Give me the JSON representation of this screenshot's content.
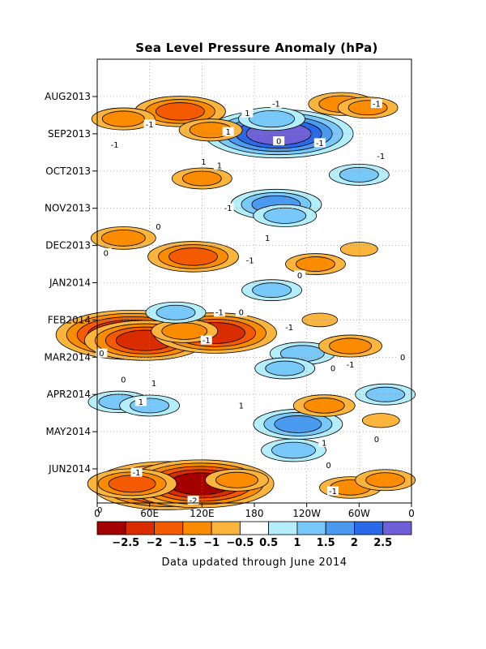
{
  "chart_data": {
    "type": "heatmap",
    "title": "Sea Level Pressure Anomaly (hPa)",
    "footnote": "Data updated through June 2014",
    "x_ticks": [
      "0",
      "60E",
      "120E",
      "180",
      "120W",
      "60W",
      "0"
    ],
    "y_ticks": [
      "AUG2013",
      "SEP2013",
      "OCT2013",
      "NOV2013",
      "DEC2013",
      "JAN2014",
      "FEB2014",
      "MAR2014",
      "APR2014",
      "MAY2014",
      "JUN2014"
    ],
    "colorbar": {
      "labels": [
        "-2.5",
        "-2",
        "-1.5",
        "-1",
        "-0.5",
        "0.5",
        "1",
        "1.5",
        "2",
        "2.5"
      ],
      "colors": [
        "#a50000",
        "#d92c00",
        "#f45a00",
        "#fb8c00",
        "#fbb43c",
        "#ffffff",
        "#b4eefa",
        "#78c8fa",
        "#4a9af0",
        "#2a6ae8",
        "#7060d8"
      ]
    },
    "contour_labels": [
      "-1",
      "-1",
      "-1",
      "-1",
      "-1",
      "-1",
      "-1",
      "-1",
      "-1",
      "-1",
      "-1",
      "-1",
      "-2",
      "-1",
      "-1",
      "1",
      "1",
      "1",
      "1",
      "1",
      "1",
      "1",
      "1",
      "1",
      "0",
      "0",
      "0",
      "0",
      "0",
      "0",
      "0",
      "0",
      "0",
      "0",
      "0",
      "0"
    ],
    "anomalies": [
      {
        "lon": 40,
        "t": 6.4,
        "v": -2.8
      },
      {
        "lon": 55,
        "t": 6.55,
        "v": -2.2
      },
      {
        "lon": 135,
        "t": 6.35,
        "v": -2.3
      },
      {
        "lon": 100,
        "t": 6.3,
        "v": -1.4
      },
      {
        "lon": 80,
        "t": 10.45,
        "v": -2.6
      },
      {
        "lon": 118,
        "t": 10.4,
        "v": -2.5
      },
      {
        "lon": 40,
        "t": 10.4,
        "v": -1.5
      },
      {
        "lon": 160,
        "t": 10.3,
        "v": -1.2
      },
      {
        "lon": 208,
        "t": 1.0,
        "v": 2.6
      },
      {
        "lon": 200,
        "t": 0.6,
        "v": 1.4
      },
      {
        "lon": 205,
        "t": 2.9,
        "v": 1.6
      },
      {
        "lon": 215,
        "t": 3.2,
        "v": 1.2
      },
      {
        "lon": 200,
        "t": 5.2,
        "v": 1.0
      },
      {
        "lon": 235,
        "t": 6.9,
        "v": 1.3
      },
      {
        "lon": 215,
        "t": 7.3,
        "v": 1.0
      },
      {
        "lon": 230,
        "t": 8.8,
        "v": 1.5
      },
      {
        "lon": 225,
        "t": 9.5,
        "v": 1.3
      },
      {
        "lon": 25,
        "t": 8.2,
        "v": 1.1
      },
      {
        "lon": 60,
        "t": 8.3,
        "v": 1.0
      },
      {
        "lon": 330,
        "t": 8.0,
        "v": 1.0
      },
      {
        "lon": 300,
        "t": 2.1,
        "v": 1.0
      },
      {
        "lon": 90,
        "t": 5.8,
        "v": 1.0
      },
      {
        "lon": 30,
        "t": 3.8,
        "v": -1.3
      },
      {
        "lon": 110,
        "t": 4.3,
        "v": -1.6
      },
      {
        "lon": 95,
        "t": 0.4,
        "v": -1.6
      },
      {
        "lon": 130,
        "t": 0.9,
        "v": -1.2
      },
      {
        "lon": 30,
        "t": 0.6,
        "v": -1.2
      },
      {
        "lon": 280,
        "t": 0.2,
        "v": -1.4
      },
      {
        "lon": 310,
        "t": 0.3,
        "v": -1.0
      },
      {
        "lon": 120,
        "t": 2.2,
        "v": -1.0
      },
      {
        "lon": 250,
        "t": 4.5,
        "v": -1.0
      },
      {
        "lon": 300,
        "t": 4.1,
        "v": -0.9
      },
      {
        "lon": 255,
        "t": 6.0,
        "v": -0.8
      },
      {
        "lon": 290,
        "t": 6.7,
        "v": -1.2
      },
      {
        "lon": 260,
        "t": 8.3,
        "v": -1.1
      },
      {
        "lon": 325,
        "t": 8.7,
        "v": -0.9
      },
      {
        "lon": 290,
        "t": 10.5,
        "v": -1.1
      },
      {
        "lon": 330,
        "t": 10.3,
        "v": -1.0
      }
    ]
  }
}
